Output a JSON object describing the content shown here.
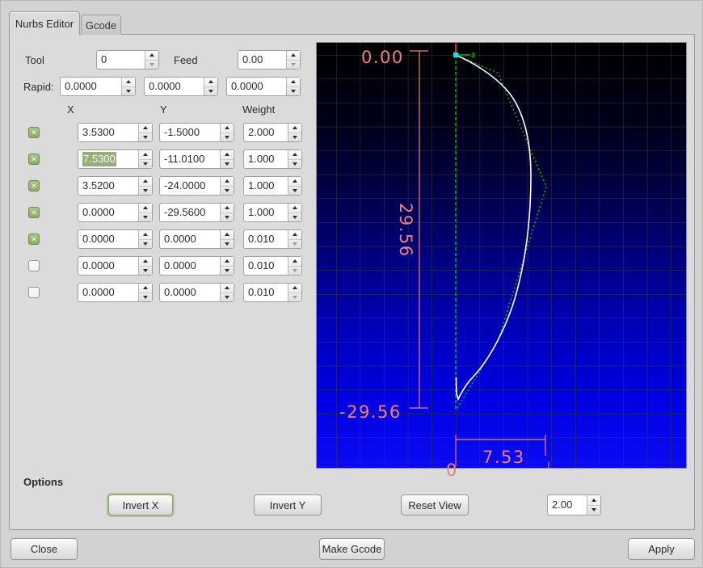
{
  "tabs": {
    "nurbs": "Nurbs Editor",
    "gcode": "Gcode"
  },
  "header": {
    "tool_label": "Tool",
    "tool_value": "0",
    "feed_label": "Feed",
    "feed_value": "0.00",
    "rapid_label": "Rapid:",
    "rapid_x": "0.0000",
    "rapid_y": "0.0000",
    "rapid_z": "0.0000"
  },
  "table": {
    "col_x": "X",
    "col_y": "Y",
    "col_weight": "Weight",
    "rows": [
      {
        "checked": true,
        "x": "3.5300",
        "y": "-1.5000",
        "weight": "2.000",
        "x_selected": false
      },
      {
        "checked": true,
        "x": "7.5300",
        "y": "-11.0100",
        "weight": "1.000",
        "x_selected": true
      },
      {
        "checked": true,
        "x": "3.5200",
        "y": "-24.0000",
        "weight": "1.000",
        "x_selected": false
      },
      {
        "checked": true,
        "x": "0.0000",
        "y": "-29.5600",
        "weight": "1.000",
        "x_selected": false
      },
      {
        "checked": true,
        "x": "0.0000",
        "y": "0.0000",
        "weight": "0.010",
        "x_selected": false
      },
      {
        "checked": false,
        "x": "0.0000",
        "y": "0.0000",
        "weight": "0.010",
        "x_selected": false
      },
      {
        "checked": false,
        "x": "0.0000",
        "y": "0.0000",
        "weight": "0.010",
        "x_selected": false
      }
    ]
  },
  "options": {
    "title": "Options",
    "invert_x": "Invert X",
    "invert_y": "Invert Y",
    "reset_view": "Reset View",
    "zoom_value": "2.00"
  },
  "actions": {
    "close": "Close",
    "make_gcode": "Make Gcode",
    "apply": "Apply"
  },
  "plot": {
    "dim_top": "0.00",
    "dim_height": "29.56",
    "dim_bottom": "-29.56",
    "dim_width": "7.53",
    "clipped_bottom_label": "0",
    "origin_marker_label": "3",
    "colors": {
      "dimension": "#f08080",
      "curve": "#ffffff",
      "control_polygon": "#00c800",
      "origin_point": "#00e8e8",
      "origin_tick": "#ff2a2a"
    },
    "control_points": [
      {
        "x": 3.53,
        "y": -1.5,
        "weight": 2.0
      },
      {
        "x": 7.53,
        "y": -11.01,
        "weight": 1.0
      },
      {
        "x": 3.52,
        "y": -24.0,
        "weight": 1.0
      },
      {
        "x": 0.0,
        "y": -29.56,
        "weight": 1.0
      },
      {
        "x": 0.0,
        "y": 0.0,
        "weight": 0.01
      }
    ]
  }
}
